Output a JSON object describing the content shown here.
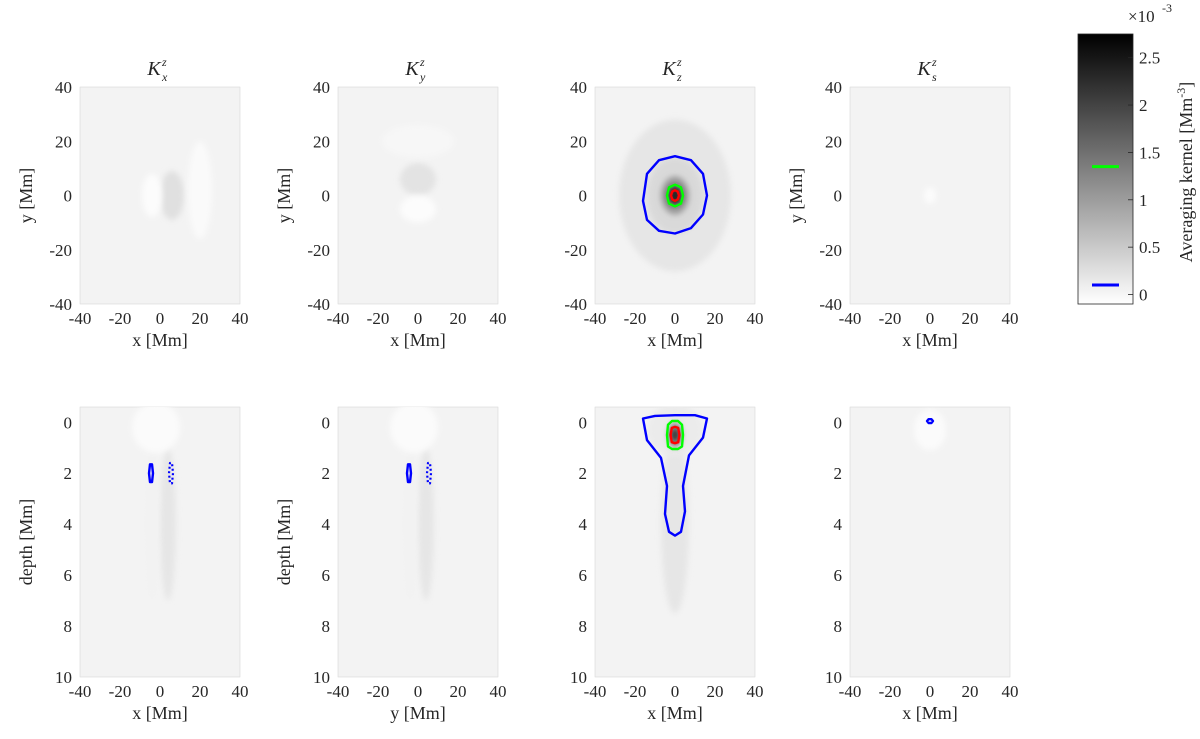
{
  "chart_data": {
    "type": "heatmap",
    "colormap": "gray (white = 0, black = max)",
    "colorbar": {
      "label": "Averaging kernel [Mm",
      "label_sup": "-3",
      "label_end": "]",
      "exponent_label": "×10",
      "exponent_sup": "-3",
      "ticks": [
        0,
        0.5,
        1,
        1.5,
        2,
        2.5
      ],
      "tick_labels": [
        "0",
        "0.5",
        "1",
        "1.5",
        "2",
        "2.5"
      ],
      "range": [
        -0.1,
        2.75
      ],
      "contour_markers": [
        {
          "value": 1.35,
          "color": "#00ff00"
        },
        {
          "value": 0.1,
          "color": "#0000ff"
        }
      ]
    },
    "panels": [
      {
        "name": "horizontal-x",
        "title": "K",
        "title_sub": "x",
        "title_sup": "z",
        "xlabel": "x [Mm]",
        "ylabel": "y [Mm]",
        "xlim": [
          -40,
          40
        ],
        "ylim": [
          -40,
          40
        ],
        "xticks": [
          "-40",
          "-20",
          "0",
          "20",
          "40"
        ],
        "yticks": [
          "40",
          "20",
          "0",
          "-20",
          "-40"
        ],
        "features": [
          {
            "shape": "blob",
            "x": 6,
            "y": 0,
            "rx": 6,
            "ry": 9,
            "gray": 0.88
          },
          {
            "shape": "blob",
            "x": -4,
            "y": 0,
            "rx": 5,
            "ry": 8,
            "gray": 0.99
          },
          {
            "shape": "blob",
            "x": 20,
            "y": 2,
            "rx": 6,
            "ry": 18,
            "gray": 0.98
          }
        ],
        "contours": []
      },
      {
        "name": "horizontal-y",
        "title": "K",
        "title_sub": "y",
        "title_sup": "z",
        "xlabel": "x [Mm]",
        "ylabel": "y [Mm]",
        "xlim": [
          -40,
          40
        ],
        "ylim": [
          -40,
          40
        ],
        "xticks": [
          "-40",
          "-20",
          "0",
          "20",
          "40"
        ],
        "yticks": [
          "40",
          "20",
          "0",
          "-20",
          "-40"
        ],
        "features": [
          {
            "shape": "blob",
            "x": 0,
            "y": 6,
            "rx": 9,
            "ry": 6,
            "gray": 0.89
          },
          {
            "shape": "blob",
            "x": 0,
            "y": -5,
            "rx": 9,
            "ry": 5,
            "gray": 0.99
          },
          {
            "shape": "blob",
            "x": 0,
            "y": 20,
            "rx": 18,
            "ry": 6,
            "gray": 0.97
          }
        ],
        "contours": []
      },
      {
        "name": "horizontal-z",
        "title": "K",
        "title_sub": "z",
        "title_sup": "z",
        "xlabel": "x [Mm]",
        "ylabel": "",
        "xlim": [
          -40,
          40
        ],
        "ylim": [
          -40,
          40
        ],
        "xticks": [
          "-40",
          "-20",
          "0",
          "20",
          "40"
        ],
        "yticks": [
          "40",
          "20",
          "0",
          "-20",
          "-40"
        ],
        "features": [
          {
            "shape": "blob",
            "x": 0,
            "y": 0,
            "rx": 28,
            "ry": 28,
            "gray": 0.9
          },
          {
            "shape": "blob",
            "x": 0,
            "y": 0,
            "rx": 14,
            "ry": 14,
            "gray": 0.85
          },
          {
            "shape": "blob",
            "x": 0,
            "y": 0,
            "rx": 7,
            "ry": 7,
            "gray": 0.6
          },
          {
            "shape": "blob",
            "x": 0,
            "y": 0,
            "rx": 3.5,
            "ry": 3.5,
            "gray": 0.15
          }
        ],
        "contours": [
          {
            "color": "#0000ff",
            "style": "solid",
            "points": [
              [
                -16,
                -2
              ],
              [
                -14,
                8
              ],
              [
                -8,
                13
              ],
              [
                0,
                14.5
              ],
              [
                8,
                13
              ],
              [
                14,
                8
              ],
              [
                16,
                0
              ],
              [
                14,
                -7
              ],
              [
                8,
                -12
              ],
              [
                0,
                -14
              ],
              [
                -8,
                -13
              ],
              [
                -14,
                -9
              ]
            ]
          },
          {
            "color": "#00ff00",
            "style": "solid",
            "points": [
              [
                -4,
                0
              ],
              [
                -3,
                3
              ],
              [
                0,
                4
              ],
              [
                3,
                3
              ],
              [
                4,
                0
              ],
              [
                3,
                -3
              ],
              [
                0,
                -4
              ],
              [
                -3,
                -3
              ]
            ]
          },
          {
            "color": "#ff0000",
            "style": "solid",
            "points": [
              [
                -2,
                0
              ],
              [
                -1.4,
                1.4
              ],
              [
                0,
                2
              ],
              [
                1.4,
                1.4
              ],
              [
                2,
                0
              ],
              [
                1.4,
                -1.4
              ],
              [
                0,
                -2
              ],
              [
                -1.4,
                -1.4
              ]
            ]
          }
        ]
      },
      {
        "name": "horizontal-s",
        "title": "K",
        "title_sub": "s",
        "title_sup": "z",
        "xlabel": "x [Mm]",
        "ylabel": "y [Mm]",
        "xlim": [
          -40,
          40
        ],
        "ylim": [
          -40,
          40
        ],
        "xticks": [
          "-40",
          "-20",
          "0",
          "20",
          "40"
        ],
        "yticks": [
          "40",
          "20",
          "0",
          "-20",
          "-40"
        ],
        "features": [
          {
            "shape": "blob",
            "x": 0,
            "y": 0,
            "rx": 3,
            "ry": 3,
            "gray": 0.99
          }
        ],
        "contours": []
      },
      {
        "name": "depth-x",
        "title": "",
        "xlabel": "x [Mm]",
        "ylabel": "depth [Mm]",
        "xlim": [
          -40,
          40
        ],
        "ylim": [
          10,
          -0.6
        ],
        "xticks": [
          "-40",
          "-20",
          "0",
          "20",
          "40"
        ],
        "yticks": [
          "0",
          "2",
          "4",
          "6",
          "8",
          "10"
        ],
        "features": [
          {
            "shape": "blob",
            "x": 4,
            "y": 4,
            "rx": 4,
            "ry": 3,
            "gray": 0.9
          },
          {
            "shape": "blob",
            "x": -4,
            "y": 4,
            "rx": 3,
            "ry": 3,
            "gray": 0.95
          },
          {
            "shape": "blob",
            "x": -2,
            "y": 0.2,
            "rx": 12,
            "ry": 1,
            "gray": 0.985
          }
        ],
        "contours": [
          {
            "color": "#0000ff",
            "style": "solid",
            "points": [
              [
                -5.5,
                2.0
              ],
              [
                -5,
                1.65
              ],
              [
                -4,
                1.65
              ],
              [
                -3.5,
                2.0
              ],
              [
                -4,
                2.35
              ],
              [
                -5,
                2.35
              ]
            ]
          },
          {
            "color": "#0000ff",
            "style": "dotted",
            "points": [
              [
                4.5,
                2.0
              ],
              [
                5,
                1.6
              ],
              [
                6,
                1.6
              ],
              [
                6.5,
                2.0
              ],
              [
                6,
                2.4
              ],
              [
                5,
                2.4
              ]
            ]
          }
        ]
      },
      {
        "name": "depth-y",
        "title": "",
        "xlabel": "y [Mm]",
        "ylabel": "depth [Mm]",
        "xlim": [
          -40,
          40
        ],
        "ylim": [
          10,
          -0.6
        ],
        "xticks": [
          "-40",
          "-20",
          "0",
          "20",
          "40"
        ],
        "yticks": [
          "0",
          "2",
          "4",
          "6",
          "8",
          "10"
        ],
        "features": [
          {
            "shape": "blob",
            "x": 4,
            "y": 4,
            "rx": 4,
            "ry": 3,
            "gray": 0.9
          },
          {
            "shape": "blob",
            "x": -4,
            "y": 4,
            "rx": 3,
            "ry": 3,
            "gray": 0.95
          },
          {
            "shape": "blob",
            "x": -2,
            "y": 0.2,
            "rx": 12,
            "ry": 1,
            "gray": 0.985
          }
        ],
        "contours": [
          {
            "color": "#0000ff",
            "style": "solid",
            "points": [
              [
                -5.5,
                2.0
              ],
              [
                -5,
                1.65
              ],
              [
                -4,
                1.65
              ],
              [
                -3.5,
                2.0
              ],
              [
                -4,
                2.35
              ],
              [
                -5,
                2.35
              ]
            ]
          },
          {
            "color": "#0000ff",
            "style": "dotted",
            "points": [
              [
                4.5,
                2.0
              ],
              [
                5,
                1.6
              ],
              [
                6,
                1.6
              ],
              [
                6.5,
                2.0
              ],
              [
                6,
                2.4
              ],
              [
                5,
                2.4
              ]
            ]
          }
        ]
      },
      {
        "name": "depth-z",
        "title": "",
        "xlabel": "x [Mm]",
        "ylabel": "",
        "xlim": [
          -40,
          40
        ],
        "ylim": [
          10,
          -0.6
        ],
        "xticks": [
          "-40",
          "-20",
          "0",
          "20",
          "40"
        ],
        "yticks": [
          "0",
          "2",
          "4",
          "6",
          "8",
          "10"
        ],
        "features": [
          {
            "shape": "blob",
            "x": 0,
            "y": 4,
            "rx": 7,
            "ry": 3.5,
            "gray": 0.9
          },
          {
            "shape": "blob",
            "x": 0,
            "y": 0.3,
            "rx": 14,
            "ry": 1,
            "gray": 0.92
          },
          {
            "shape": "blob",
            "x": 0,
            "y": 0.5,
            "rx": 3.5,
            "ry": 0.5,
            "gray": 0.55
          },
          {
            "shape": "blob",
            "x": 0,
            "y": 0.5,
            "rx": 1.8,
            "ry": 0.25,
            "gray": 0.15
          }
        ],
        "contours": [
          {
            "color": "#0000ff",
            "style": "solid",
            "points": [
              [
                -16,
                -0.15
              ],
              [
                -10,
                -0.25
              ],
              [
                0,
                -0.28
              ],
              [
                10,
                -0.28
              ],
              [
                16,
                -0.15
              ],
              [
                14,
                0.6
              ],
              [
                7,
                1.3
              ],
              [
                4,
                2.5
              ],
              [
                5,
                3.5
              ],
              [
                3,
                4.3
              ],
              [
                0,
                4.45
              ],
              [
                -3,
                4.3
              ],
              [
                -5,
                3.6
              ],
              [
                -4,
                2.5
              ],
              [
                -7,
                1.4
              ],
              [
                -14,
                0.7
              ]
            ]
          },
          {
            "color": "#00ff00",
            "style": "solid",
            "points": [
              [
                -4,
                0.5
              ],
              [
                -3.5,
                0.1
              ],
              [
                -1.5,
                -0.05
              ],
              [
                1.5,
                -0.05
              ],
              [
                3.5,
                0.1
              ],
              [
                4,
                0.5
              ],
              [
                3.5,
                0.95
              ],
              [
                1.5,
                1.05
              ],
              [
                -1.5,
                1.05
              ],
              [
                -3.5,
                0.95
              ]
            ]
          },
          {
            "color": "#ff0000",
            "style": "solid",
            "points": [
              [
                -2.2,
                0.5
              ],
              [
                -1.6,
                0.22
              ],
              [
                0,
                0.18
              ],
              [
                1.6,
                0.22
              ],
              [
                2.2,
                0.5
              ],
              [
                1.6,
                0.78
              ],
              [
                0,
                0.82
              ],
              [
                -1.6,
                0.78
              ]
            ]
          }
        ]
      },
      {
        "name": "depth-s",
        "title": "",
        "xlabel": "x [Mm]",
        "ylabel": "",
        "xlim": [
          -40,
          40
        ],
        "ylim": [
          10,
          -0.6
        ],
        "xticks": [
          "-40",
          "-20",
          "0",
          "20",
          "40"
        ],
        "yticks": [
          "0",
          "2",
          "4",
          "6",
          "8",
          "10"
        ],
        "features": [
          {
            "shape": "blob",
            "x": 0,
            "y": 0.3,
            "rx": 8,
            "ry": 0.8,
            "gray": 0.985
          }
        ],
        "contours": [
          {
            "color": "#0000ff",
            "style": "solid",
            "points": [
              [
                -1.5,
                -0.05
              ],
              [
                -0.7,
                -0.12
              ],
              [
                0.7,
                -0.12
              ],
              [
                1.5,
                -0.05
              ],
              [
                0.7,
                0.03
              ],
              [
                -0.7,
                0.03
              ]
            ]
          }
        ]
      }
    ]
  }
}
